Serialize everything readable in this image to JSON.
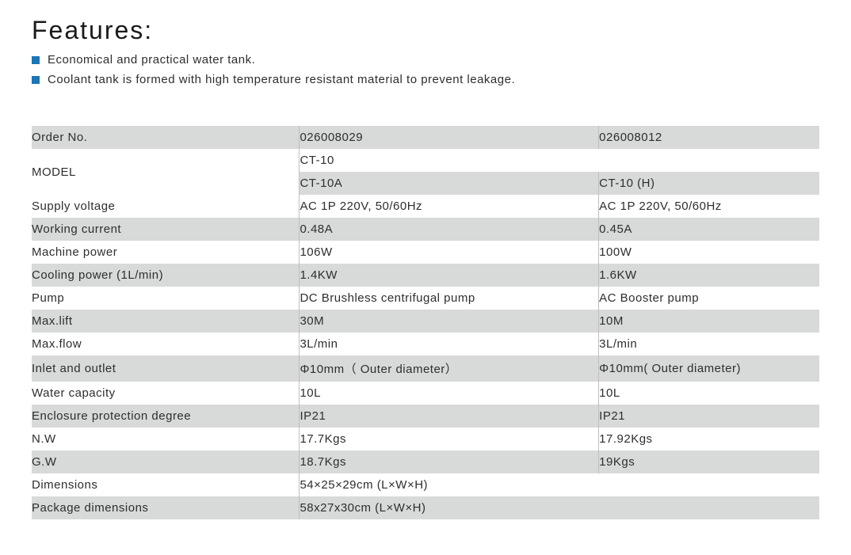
{
  "title": "Features:",
  "bullets": [
    "Economical and practical water tank.",
    "Coolant tank is formed with high temperature resistant material to prevent leakage."
  ],
  "colors": {
    "shade": "#d8d9d9",
    "rule": "#bfbfbf",
    "bullet": "#1976b8",
    "text": "#2e2e2e"
  },
  "labels": {
    "order_no": "Order No.",
    "model": "MODEL",
    "supply_voltage": "Supply voltage",
    "working_current": "Working current",
    "machine_power": "Machine power",
    "cooling_power": "Cooling power (1L/min)",
    "pump": "Pump",
    "max_lift": "Max.lift",
    "max_flow": "Max.flow",
    "inlet_outlet": "Inlet and outlet",
    "water_capacity": "Water capacity",
    "enclosure": "Enclosure protection degree",
    "nw": "N.W",
    "gw": "G.W",
    "dimensions": "Dimensions",
    "package_dimensions": "Package dimensions"
  },
  "model_family": "CT-10",
  "colA": {
    "order_no": "026008029",
    "model": "CT-10A",
    "supply_voltage": "AC 1P 220V, 50/60Hz",
    "working_current": "0.48A",
    "machine_power": "106W",
    "cooling_power": "1.4KW",
    "pump": "DC Brushless centrifugal pump",
    "max_lift": "30M",
    "max_flow": "3L/min",
    "inlet_outlet": "Φ10mm（ Outer diameter）",
    "water_capacity": "10L",
    "enclosure": "IP21",
    "nw": "17.7Kgs",
    "gw": "18.7Kgs"
  },
  "colB": {
    "order_no": "026008012",
    "model": "CT-10 (H)",
    "supply_voltage": "AC 1P 220V, 50/60Hz",
    "working_current": "0.45A",
    "machine_power": "100W",
    "cooling_power": "1.6KW",
    "pump": "AC Booster pump",
    "max_lift": "10M",
    "max_flow": "3L/min",
    "inlet_outlet": "Φ10mm( Outer diameter)",
    "water_capacity": "10L",
    "enclosure": "IP21",
    "nw": "17.92Kgs",
    "gw": "19Kgs"
  },
  "shared": {
    "dimensions": "54×25×29cm (L×W×H)",
    "package_dimensions": "58x27x30cm (L×W×H)"
  }
}
